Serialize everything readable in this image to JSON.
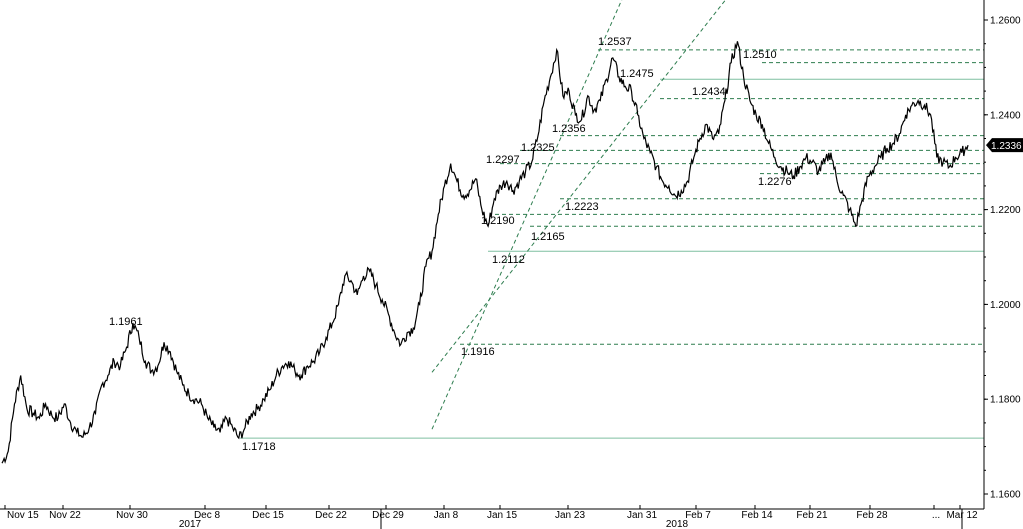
{
  "chart_data": {
    "type": "line",
    "title": "",
    "xlabel": "",
    "ylabel": "",
    "ylim": [
      1.16,
      1.26
    ],
    "y_ticks": [
      "1.1600",
      "1.1800",
      "1.2000",
      "1.2200",
      "1.2400",
      "1.2600"
    ],
    "x_ticks": [
      "Nov 15",
      "Nov 22",
      "Nov 30",
      "Dec 8",
      "Dec 15",
      "Dec 22",
      "Dec 29",
      "Jan 8",
      "Jan 15",
      "Jan 23",
      "Jan 31",
      "Feb 7",
      "Feb 14",
      "Feb 21",
      "Feb 28",
      "...",
      "Mar 12"
    ],
    "year_labels": [
      "2017",
      "2018"
    ],
    "last_value_label": "1.2336",
    "series": [
      {
        "values": [
          1.1665,
          1.169,
          1.179,
          1.185,
          1.178,
          1.177,
          1.176,
          1.179,
          1.1765,
          1.176,
          1.179,
          1.175,
          1.173,
          1.172,
          1.174,
          1.177,
          1.183,
          1.185,
          1.188,
          1.187,
          1.191,
          1.1961,
          1.193,
          1.188,
          1.186,
          1.187,
          1.192,
          1.19,
          1.186,
          1.183,
          1.181,
          1.18,
          1.179,
          1.176,
          1.174,
          1.173,
          1.176,
          1.174,
          1.1718,
          1.174,
          1.177,
          1.178,
          1.18,
          1.182,
          1.185,
          1.187,
          1.188,
          1.186,
          1.185,
          1.187,
          1.188,
          1.19,
          1.193,
          1.196,
          1.2,
          1.206,
          1.205,
          1.202,
          1.206,
          1.207,
          1.204,
          1.201,
          1.198,
          1.194,
          1.1916,
          1.194,
          1.195,
          1.2,
          1.208,
          1.2112,
          1.219,
          1.225,
          1.2297,
          1.226,
          1.223,
          1.224,
          1.2265,
          1.22,
          1.2165,
          1.2223,
          1.225,
          1.226,
          1.224,
          1.226,
          1.228,
          1.23,
          1.2356,
          1.243,
          1.248,
          1.2537,
          1.244,
          1.245,
          1.24,
          1.239,
          1.244,
          1.241,
          1.243,
          1.2475,
          1.252,
          1.248,
          1.246,
          1.245,
          1.24,
          1.235,
          1.232,
          1.229,
          1.226,
          1.225,
          1.223,
          1.224,
          1.226,
          1.231,
          1.235,
          1.238,
          1.235,
          1.236,
          1.243,
          1.251,
          1.2555,
          1.248,
          1.243,
          1.24,
          1.238,
          1.234,
          1.231,
          1.229,
          1.228,
          1.227,
          1.229,
          1.231,
          1.23,
          1.228,
          1.23,
          1.232,
          1.226,
          1.223,
          1.22,
          1.2165,
          1.222,
          1.227,
          1.229,
          1.231,
          1.233,
          1.234,
          1.236,
          1.24,
          1.242,
          1.243,
          1.242,
          1.24,
          1.231,
          1.23,
          1.229,
          1.231,
          1.232,
          1.2336
        ]
      }
    ],
    "annotations": [
      "1.2537",
      "1.2510",
      "1.2475",
      "1.2434",
      "1.2356",
      "1.2325",
      "1.2297",
      "1.2276",
      "1.2223",
      "1.2190",
      "1.2165",
      "1.2112",
      "1.1961",
      "1.1916",
      "1.1718"
    ],
    "horizontal_levels": {
      "dashed": [
        1.2537,
        1.251,
        1.2434,
        1.2356,
        1.2325,
        1.2297,
        1.2276,
        1.2223,
        1.219,
        1.2165,
        1.1916
      ],
      "solid": [
        1.2475,
        1.2112,
        1.1718
      ]
    },
    "channel_lines": [
      {
        "from": [
          "Jan 8",
          1.18
        ],
        "to": [
          "Jan 31",
          1.27
        ]
      },
      {
        "from": [
          "Jan 8",
          1.192
        ],
        "to": [
          "Feb 14",
          1.27
        ]
      }
    ],
    "grid": false,
    "legend": "none",
    "colors": {
      "line": "#000000",
      "dashed": "#2e7d4f",
      "solid": "#7fbfa0",
      "axis": "#000000"
    }
  }
}
